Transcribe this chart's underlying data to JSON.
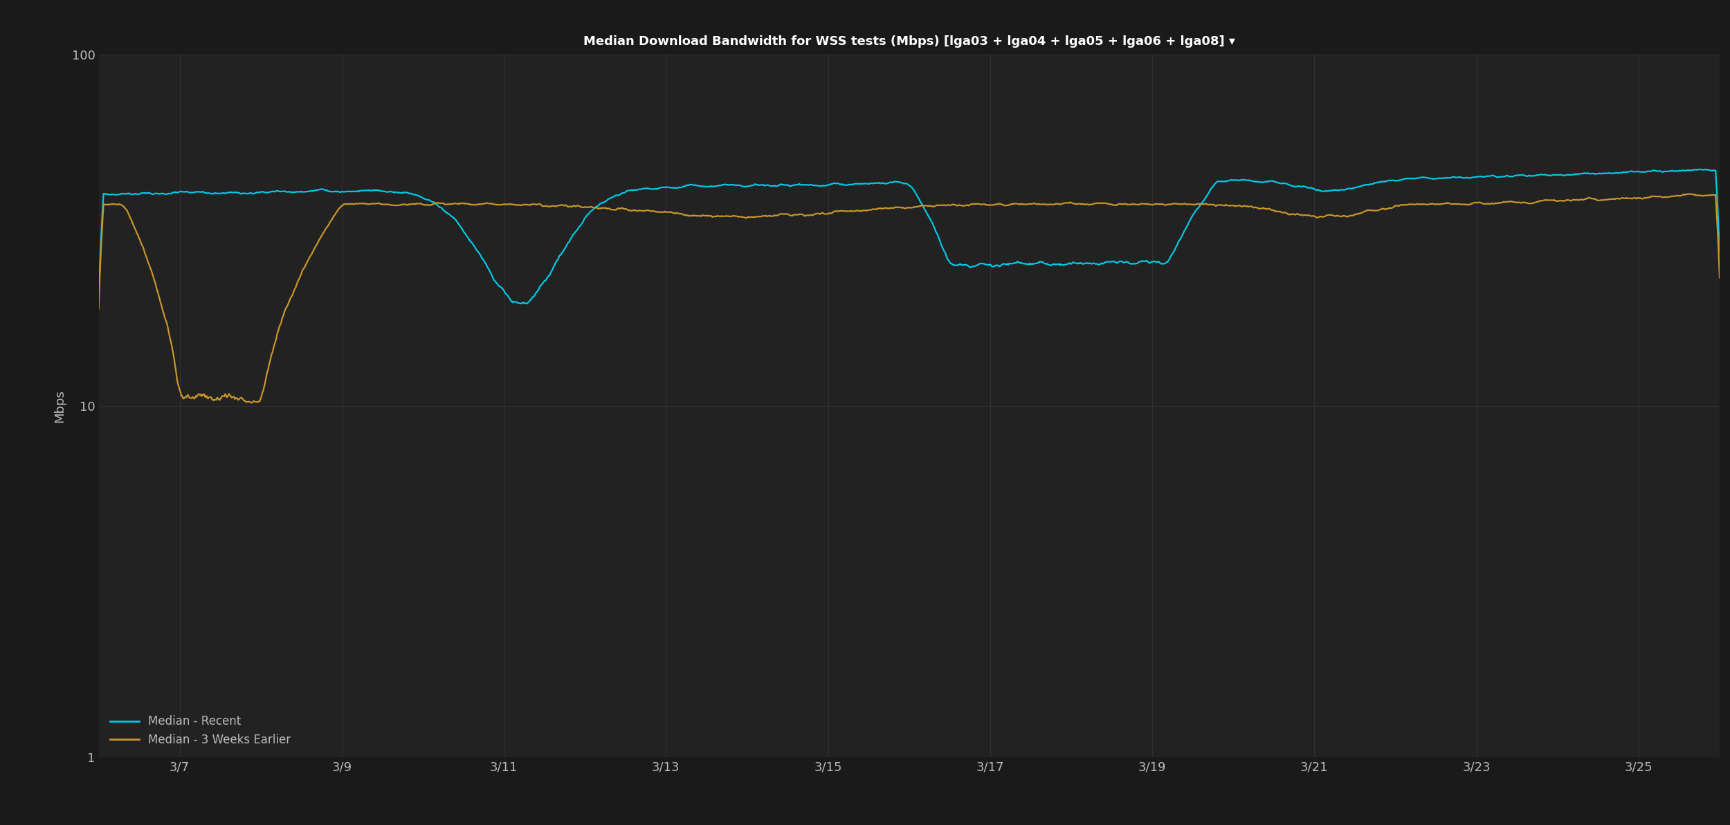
{
  "title": "Median Download Bandwidth for WSS tests (Mbps) [lga03 + lga04 + lga05 + lga06 + lga08] ▾",
  "ylabel": "Mbps",
  "background_color": "#1a1a1a",
  "axes_bg_color": "#222222",
  "grid_color": "#333333",
  "text_color": "#bbbbbb",
  "line_recent_color": "#00c8e6",
  "line_earlier_color": "#c8962a",
  "line_width": 1.6,
  "x_ticks": [
    "3/7",
    "3/9",
    "3/11",
    "3/13",
    "3/15",
    "3/17",
    "3/19",
    "3/21",
    "3/23",
    "3/25"
  ],
  "x_tick_positions": [
    1,
    3,
    5,
    7,
    9,
    11,
    13,
    15,
    17,
    19
  ],
  "y_ticks": [
    1,
    10,
    100
  ],
  "legend_labels": [
    "Median - Recent",
    "Median - 3 Weeks Earlier"
  ]
}
